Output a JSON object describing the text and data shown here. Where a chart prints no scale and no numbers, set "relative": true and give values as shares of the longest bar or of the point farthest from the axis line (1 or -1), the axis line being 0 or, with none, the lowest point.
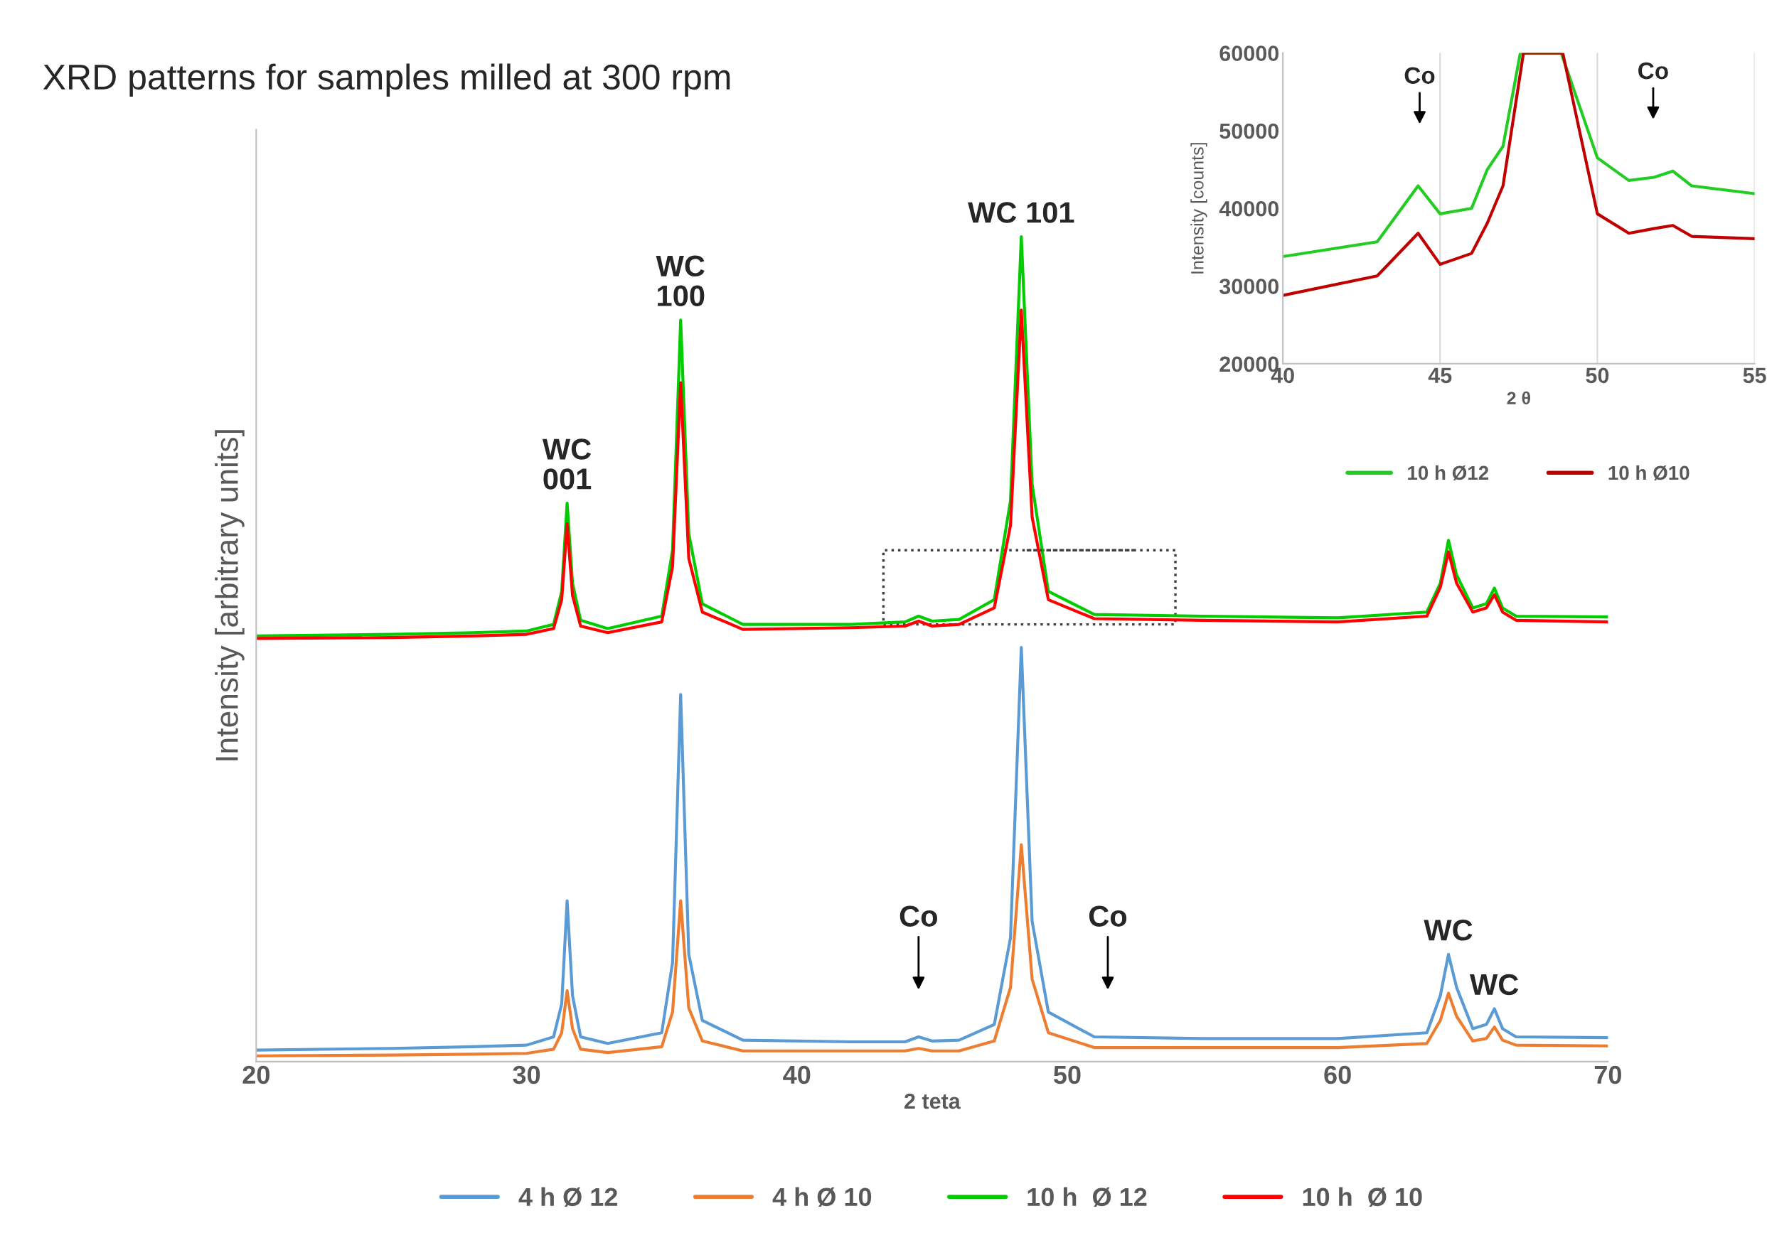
{
  "chart_data": [
    {
      "type": "line",
      "title": "XRD patterns for samples milled at 300 rpm",
      "xlabel": "2 teta",
      "ylabel": "Intensity [arbitrary units]",
      "relative": true,
      "xlim": [
        20,
        70
      ],
      "xticks": [
        20,
        30,
        40,
        50,
        60,
        70
      ],
      "legend": "bottom",
      "grid": false,
      "x": [
        20,
        25,
        28,
        30,
        31.0,
        31.3,
        31.5,
        31.7,
        32.0,
        33,
        35.0,
        35.4,
        35.7,
        36.0,
        36.5,
        38,
        42,
        44.0,
        44.5,
        45.0,
        46,
        47.3,
        47.9,
        48.3,
        48.7,
        49.3,
        51,
        55,
        60,
        63.3,
        63.8,
        64.1,
        64.4,
        65.0,
        65.5,
        65.8,
        66.1,
        66.6,
        70
      ],
      "series": [
        {
          "name": "4 h Ø 12",
          "color": "#5b9bd5",
          "values": [
            0.014,
            0.016,
            0.018,
            0.02,
            0.03,
            0.07,
            0.195,
            0.08,
            0.03,
            0.022,
            0.035,
            0.12,
            0.445,
            0.13,
            0.05,
            0.026,
            0.024,
            0.024,
            0.03,
            0.025,
            0.026,
            0.045,
            0.15,
            0.502,
            0.17,
            0.06,
            0.03,
            0.028,
            0.028,
            0.035,
            0.08,
            0.13,
            0.09,
            0.04,
            0.045,
            0.064,
            0.04,
            0.03,
            0.029
          ]
        },
        {
          "name": "4 h Ø 10",
          "color": "#ed7d31",
          "values": [
            0.007,
            0.008,
            0.009,
            0.01,
            0.015,
            0.035,
            0.086,
            0.04,
            0.015,
            0.011,
            0.018,
            0.06,
            0.195,
            0.065,
            0.025,
            0.013,
            0.013,
            0.013,
            0.016,
            0.013,
            0.013,
            0.025,
            0.09,
            0.263,
            0.1,
            0.035,
            0.017,
            0.017,
            0.017,
            0.022,
            0.05,
            0.083,
            0.055,
            0.025,
            0.028,
            0.042,
            0.026,
            0.02,
            0.019
          ]
        },
        {
          "name": "10 h  Ø 12",
          "color": "#00cc00",
          "values": [
            0.516,
            0.518,
            0.52,
            0.522,
            0.53,
            0.57,
            0.677,
            0.58,
            0.535,
            0.525,
            0.54,
            0.62,
            0.899,
            0.64,
            0.555,
            0.53,
            0.53,
            0.533,
            0.54,
            0.534,
            0.536,
            0.56,
            0.68,
            1.0,
            0.7,
            0.57,
            0.542,
            0.54,
            0.538,
            0.545,
            0.58,
            0.632,
            0.59,
            0.55,
            0.555,
            0.574,
            0.55,
            0.54,
            0.539
          ]
        },
        {
          "name": "10 h  Ø 10",
          "color": "#ff0000",
          "values": [
            0.513,
            0.514,
            0.516,
            0.518,
            0.525,
            0.56,
            0.652,
            0.565,
            0.528,
            0.52,
            0.533,
            0.6,
            0.823,
            0.61,
            0.545,
            0.524,
            0.526,
            0.528,
            0.534,
            0.528,
            0.53,
            0.55,
            0.65,
            0.911,
            0.66,
            0.56,
            0.537,
            0.535,
            0.533,
            0.54,
            0.575,
            0.618,
            0.58,
            0.545,
            0.55,
            0.566,
            0.545,
            0.535,
            0.533
          ]
        }
      ],
      "annotations": [
        {
          "text": "WC\n001",
          "x": 31.5,
          "y": 0.677
        },
        {
          "text": "WC\n100",
          "x": 35.7,
          "y": 0.899
        },
        {
          "text": "WC 101",
          "x": 48.3,
          "y": 1.0
        },
        "Co",
        "Co",
        {
          "text": "WC",
          "x": 64.1,
          "y": 0.13
        },
        {
          "text": "WC",
          "x": 65.8,
          "y": 0.064
        }
      ]
    },
    {
      "type": "line",
      "xlabel": "2 θ",
      "ylabel": "Intensity [counts]",
      "xlim": [
        40,
        55
      ],
      "ylim": [
        20000,
        60000
      ],
      "xticks": [
        40,
        45,
        50,
        55
      ],
      "yticks": [
        20000,
        30000,
        40000,
        50000,
        60000
      ],
      "grid": "x",
      "legend": "bottom",
      "series": [
        {
          "name": "10 h Ø12",
          "color": "#22cc22",
          "x": [
            40,
            43,
            44.3,
            45,
            46,
            46.5,
            47,
            47.55,
            48.85,
            50,
            51,
            51.8,
            52.4,
            53,
            55
          ],
          "values": [
            33800,
            35700,
            42900,
            39300,
            40000,
            45000,
            48000,
            60000,
            60000,
            46500,
            43600,
            44000,
            44800,
            42900,
            41900
          ]
        },
        {
          "name": "10 h Ø10",
          "color": "#c00000",
          "x": [
            40,
            43,
            44.3,
            45,
            46,
            46.5,
            47,
            47.65,
            48.9,
            50,
            51,
            51.8,
            52.4,
            53,
            55
          ],
          "values": [
            28800,
            31300,
            36800,
            32800,
            34200,
            38100,
            42900,
            60000,
            60000,
            39300,
            36800,
            37400,
            37800,
            36400,
            36100
          ]
        }
      ],
      "annotations": [
        "Co",
        "Co"
      ]
    }
  ]
}
